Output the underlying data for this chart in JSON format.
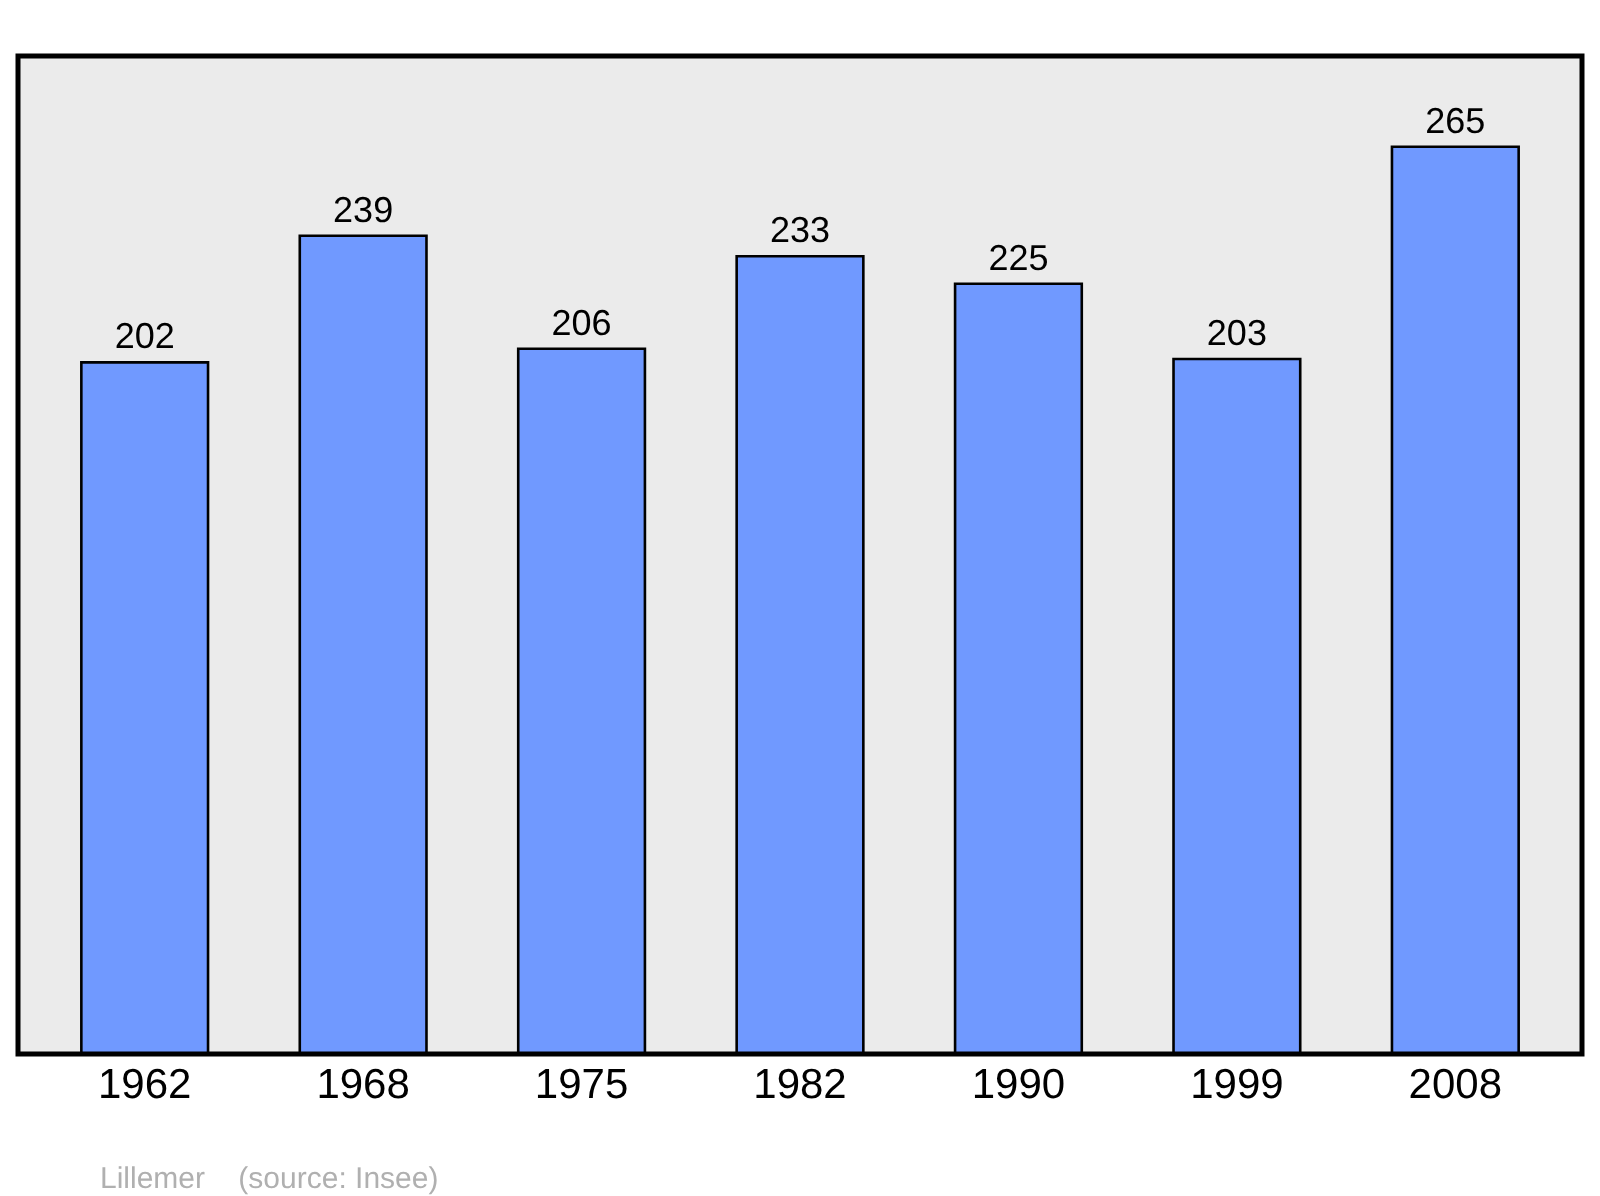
{
  "chart_data": {
    "type": "bar",
    "categories": [
      "1962",
      "1968",
      "1975",
      "1982",
      "1990",
      "1999",
      "2008"
    ],
    "values": [
      202,
      239,
      206,
      233,
      225,
      203,
      265
    ],
    "color": "#7099ff",
    "data_labels": true,
    "grid": false,
    "legend": false,
    "tick_labels": "x",
    "annotations": [
      "Lillemer    (source: Insee)"
    ]
  }
}
